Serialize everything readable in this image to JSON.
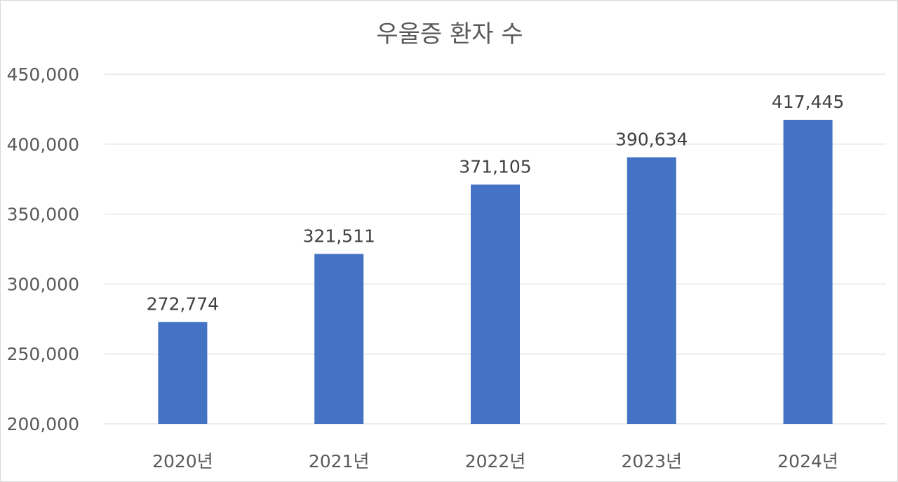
{
  "chart_data": {
    "type": "bar",
    "title": "우울증 환자 수",
    "categories": [
      "2020년",
      "2021년",
      "2022년",
      "2023년",
      "2024년"
    ],
    "values": [
      272774,
      321511,
      371105,
      390634,
      417445
    ],
    "value_labels": [
      "272,774",
      "321,511",
      "371,105",
      "390,634",
      "417,445"
    ],
    "y_ticks": [
      "200,000",
      "250,000",
      "300,000",
      "350,000",
      "400,000",
      "450,000"
    ],
    "ylim": [
      200000,
      450000
    ],
    "xlabel": "",
    "ylabel": "",
    "grid": true,
    "legend": "none",
    "colors": {
      "bar": "#4472c4",
      "grid": "#d9d9d9",
      "axis_text": "#595959",
      "label_text": "#404040"
    }
  }
}
